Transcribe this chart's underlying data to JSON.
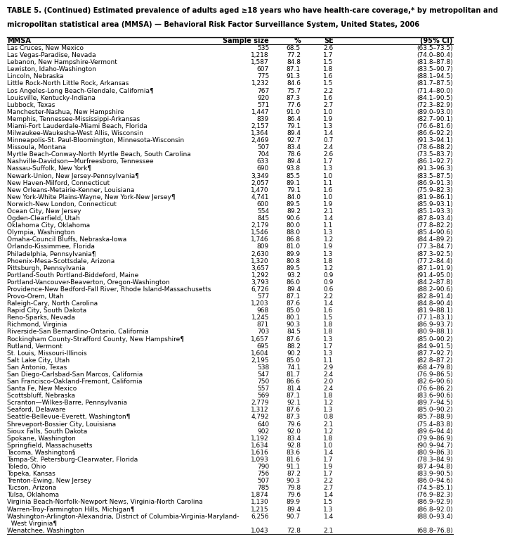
{
  "title_line1": "TABLE 5. (Continued) Estimated prevalence of adults aged ≥18 years who have health-care coverage,* by metropolitan and",
  "title_line2": "micropolitan statistical area (MMSA) — Behavioral Risk Factor Surveillance System, United States, 2006",
  "col_headers": [
    "MMSA",
    "Sample size",
    "%",
    "SE",
    "(95% CI)"
  ],
  "rows": [
    [
      "Las Cruces, New Mexico",
      "535",
      "68.5",
      "2.6",
      "(63.5–73.5)"
    ],
    [
      "Las Vegas-Paradise, Nevada",
      "1,218",
      "77.2",
      "1.7",
      "(74.0–80.4)"
    ],
    [
      "Lebanon, New Hampshire-Vermont",
      "1,587",
      "84.8",
      "1.5",
      "(81.8–87.8)"
    ],
    [
      "Lewiston, Idaho-Washington",
      "607",
      "87.1",
      "1.8",
      "(83.5–90.7)"
    ],
    [
      "Lincoln, Nebraska",
      "775",
      "91.3",
      "1.6",
      "(88.1–94.5)"
    ],
    [
      "Little Rock-North Little Rock, Arkansas",
      "1,232",
      "84.6",
      "1.5",
      "(81.7–87.5)"
    ],
    [
      "Los Angeles-Long Beach-Glendale, California¶",
      "767",
      "75.7",
      "2.2",
      "(71.4–80.0)"
    ],
    [
      "Louisville, Kentucky-Indiana",
      "920",
      "87.3",
      "1.6",
      "(84.1–90.5)"
    ],
    [
      "Lubbock, Texas",
      "571",
      "77.6",
      "2.7",
      "(72.3–82.9)"
    ],
    [
      "Manchester-Nashua, New Hampshire",
      "1,447",
      "91.0",
      "1.0",
      "(89.0–93.0)"
    ],
    [
      "Memphis, Tennessee-Mississippi-Arkansas",
      "839",
      "86.4",
      "1.9",
      "(82.7–90.1)"
    ],
    [
      "Miami-Fort Lauderdale-Miami Beach, Florida",
      "2,157",
      "79.1",
      "1.3",
      "(76.6–81.6)"
    ],
    [
      "Milwaukee-Waukesha-West Allis, Wisconsin",
      "1,364",
      "89.4",
      "1.4",
      "(86.6–92.2)"
    ],
    [
      "Minneapolis-St. Paul-Bloomington, Minnesota-Wisconsin",
      "2,469",
      "92.7",
      "0.7",
      "(91.3–94.1)"
    ],
    [
      "Missoula, Montana",
      "507",
      "83.4",
      "2.4",
      "(78.6–88.2)"
    ],
    [
      "Myrtle Beach-Conway-North Myrtle Beach, South Carolina",
      "704",
      "78.6",
      "2.6",
      "(73.5–83.7)"
    ],
    [
      "Nashville-Davidson—Murfreesboro, Tennessee",
      "633",
      "89.4",
      "1.7",
      "(86.1–92.7)"
    ],
    [
      "Nassau-Suffolk, New York¶",
      "690",
      "93.8",
      "1.3",
      "(91.3–96.3)"
    ],
    [
      "Newark-Union, New Jersey-Pennsylvania¶",
      "3,349",
      "85.5",
      "1.0",
      "(83.5–87.5)"
    ],
    [
      "New Haven-Milford, Connecticut",
      "2,057",
      "89.1",
      "1.1",
      "(86.9–91.3)"
    ],
    [
      "New Orleans-Metairie-Kenner, Louisiana",
      "1,470",
      "79.1",
      "1.6",
      "(75.9–82.3)"
    ],
    [
      "New York-White Plains-Wayne, New York-New Jersey¶",
      "4,741",
      "84.0",
      "1.0",
      "(81.9–86.1)"
    ],
    [
      "Norwich-New London, Connecticut",
      "600",
      "89.5",
      "1.9",
      "(85.9–93.1)"
    ],
    [
      "Ocean City, New Jersey",
      "554",
      "89.2",
      "2.1",
      "(85.1–93.3)"
    ],
    [
      "Ogden-Clearfield, Utah",
      "845",
      "90.6",
      "1.4",
      "(87.8–93.4)"
    ],
    [
      "Oklahoma City, Oklahoma",
      "2,179",
      "80.0",
      "1.1",
      "(77.8–82.2)"
    ],
    [
      "Olympia, Washington",
      "1,546",
      "88.0",
      "1.3",
      "(85.4–90.6)"
    ],
    [
      "Omaha-Council Bluffs, Nebraska-Iowa",
      "1,746",
      "86.8",
      "1.2",
      "(84.4–89.2)"
    ],
    [
      "Orlando-Kissimmee, Florida",
      "809",
      "81.0",
      "1.9",
      "(77.3–84.7)"
    ],
    [
      "Philadelphia, Pennsylvania¶",
      "2,630",
      "89.9",
      "1.3",
      "(87.3–92.5)"
    ],
    [
      "Phoenix-Mesa-Scottsdale, Arizona",
      "1,320",
      "80.8",
      "1.8",
      "(77.2–84.4)"
    ],
    [
      "Pittsburgh, Pennsylvania",
      "3,657",
      "89.5",
      "1.2",
      "(87.1–91.9)"
    ],
    [
      "Portland-South Portland-Biddeford, Maine",
      "1,292",
      "93.2",
      "0.9",
      "(91.4–95.0)"
    ],
    [
      "Portland-Vancouver-Beaverton, Oregon-Washington",
      "3,793",
      "86.0",
      "0.9",
      "(84.2–87.8)"
    ],
    [
      "Providence-New Bedford-Fall River, Rhode Island-Massachusetts",
      "6,726",
      "89.4",
      "0.6",
      "(88.2–90.6)"
    ],
    [
      "Provo-Orem, Utah",
      "577",
      "87.1",
      "2.2",
      "(82.8–91.4)"
    ],
    [
      "Raleigh-Cary, North Carolina",
      "1,203",
      "87.6",
      "1.4",
      "(84.8–90.4)"
    ],
    [
      "Rapid City, South Dakota",
      "968",
      "85.0",
      "1.6",
      "(81.9–88.1)"
    ],
    [
      "Reno-Sparks, Nevada",
      "1,245",
      "80.1",
      "1.5",
      "(77.1–83.1)"
    ],
    [
      "Richmond, Virginia",
      "871",
      "90.3",
      "1.8",
      "(86.9–93.7)"
    ],
    [
      "Riverside-San Bernardino-Ontario, California",
      "703",
      "84.5",
      "1.8",
      "(80.9–88.1)"
    ],
    [
      "Rockingham County-Strafford County, New Hampshire¶",
      "1,657",
      "87.6",
      "1.3",
      "(85.0–90.2)"
    ],
    [
      "Rutland, Vermont",
      "695",
      "88.2",
      "1.7",
      "(84.9–91.5)"
    ],
    [
      "St. Louis, Missouri-Illinois",
      "1,604",
      "90.2",
      "1.3",
      "(87.7–92.7)"
    ],
    [
      "Salt Lake City, Utah",
      "2,195",
      "85.0",
      "1.1",
      "(82.8–87.2)"
    ],
    [
      "San Antonio, Texas",
      "538",
      "74.1",
      "2.9",
      "(68.4–79.8)"
    ],
    [
      "San Diego-Carlsbad-San Marcos, California",
      "547",
      "81.7",
      "2.4",
      "(76.9–86.5)"
    ],
    [
      "San Francisco-Oakland-Fremont, California",
      "750",
      "86.6",
      "2.0",
      "(82.6–90.6)"
    ],
    [
      "Santa Fe, New Mexico",
      "557",
      "81.4",
      "2.4",
      "(76.6–86.2)"
    ],
    [
      "Scottsbluff, Nebraska",
      "569",
      "87.1",
      "1.8",
      "(83.6–90.6)"
    ],
    [
      "Scranton—Wilkes-Barre, Pennsylvania",
      "2,779",
      "92.1",
      "1.2",
      "(89.7–94.5)"
    ],
    [
      "Seaford, Delaware",
      "1,312",
      "87.6",
      "1.3",
      "(85.0–90.2)"
    ],
    [
      "Seattle-Bellevue-Everett, Washington¶",
      "4,792",
      "87.3",
      "0.8",
      "(85.7–88.9)"
    ],
    [
      "Shreveport-Bossier City, Louisiana",
      "640",
      "79.6",
      "2.1",
      "(75.4–83.8)"
    ],
    [
      "Sioux Falls, South Dakota",
      "902",
      "92.0",
      "1.2",
      "(89.6–94.4)"
    ],
    [
      "Spokane, Washington",
      "1,192",
      "83.4",
      "1.8",
      "(79.9–86.9)"
    ],
    [
      "Springfield, Massachusetts",
      "1,634",
      "92.8",
      "1.0",
      "(90.9–94.7)"
    ],
    [
      "Tacoma, Washington§",
      "1,616",
      "83.6",
      "1.4",
      "(80.9–86.3)"
    ],
    [
      "Tampa-St. Petersburg-Clearwater, Florida",
      "1,093",
      "81.6",
      "1.7",
      "(78.3–84.9)"
    ],
    [
      "Toledo, Ohio",
      "790",
      "91.1",
      "1.9",
      "(87.4–94.8)"
    ],
    [
      "Topeka, Kansas",
      "756",
      "87.2",
      "1.7",
      "(83.9–90.5)"
    ],
    [
      "Trenton-Ewing, New Jersey",
      "507",
      "90.3",
      "2.2",
      "(86.0–94.6)"
    ],
    [
      "Tucson, Arizona",
      "785",
      "79.8",
      "2.7",
      "(74.5–85.1)"
    ],
    [
      "Tulsa, Oklahoma",
      "1,874",
      "79.6",
      "1.4",
      "(76.9–82.3)"
    ],
    [
      "Virginia Beach-Norfolk-Newport News, Virginia-North Carolina",
      "1,130",
      "89.9",
      "1.5",
      "(86.9–92.9)"
    ],
    [
      "Warren-Troy-Farmington Hills, Michigan¶",
      "1,215",
      "89.4",
      "1.3",
      "(86.8–92.0)"
    ],
    [
      "Washington-Arlington-Alexandria, District of Columbia-Virginia-Maryland-",
      "6,256",
      "90.7",
      "1.4",
      "(88.0–93.4)"
    ],
    [
      "  West Virginia¶",
      "",
      "",
      "",
      ""
    ],
    [
      "Wenatchee, Washington",
      "1,043",
      "72.8",
      "2.1",
      "(68.8–76.8)"
    ]
  ],
  "continuation_row": 65,
  "bg_color": "#ffffff",
  "font_size": 6.5,
  "title_font_size": 7.2,
  "header_font_size": 7.0
}
